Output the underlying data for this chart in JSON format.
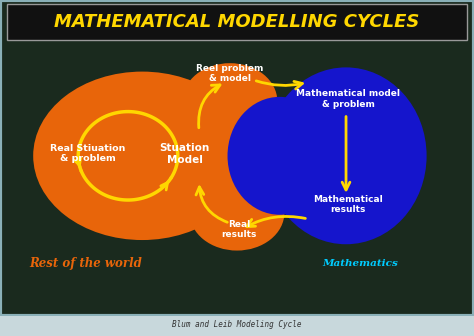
{
  "title": "MATHEMATICAL MODELLING CYCLES",
  "title_color": "#FFD700",
  "title_fontsize": 13,
  "bg_color": "#1a1a1a",
  "chalkboard_color": "#1a2a1e",
  "orange_color": "#E8650A",
  "blue_color": "#1515CC",
  "yellow_color": "#FFD700",
  "white_color": "#FFFFFF",
  "cyan_label_color": "#00CCFF",
  "orange_label_color": "#FF8C00",
  "border_color": "#8ab0b8",
  "labels": {
    "real_situation": "Real Stiuation\n& problem",
    "situation_model": "Stuation\nModel",
    "reel_problem": "Reel problem\n& model",
    "math_model": "Mathematical model\n& problem",
    "math_results": "Mathematical\nresults",
    "real_results": "Real\nresults",
    "rest_world": "Rest of the world",
    "mathematics": "Mathematics",
    "caption": "Blum and Leib Modeling Cycle"
  }
}
